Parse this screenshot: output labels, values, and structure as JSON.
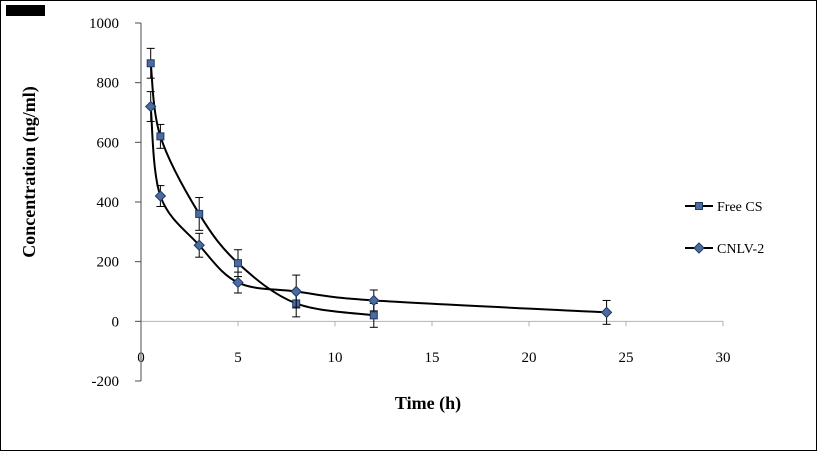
{
  "figure": {
    "background": "#ffffff",
    "border_color": "#000000"
  },
  "chart_data": {
    "type": "line",
    "title": "",
    "xlabel": "Time (h)",
    "ylabel": "Concentration (ng/ml)",
    "xlim": [
      0,
      30
    ],
    "ylim": [
      -200,
      1000
    ],
    "xticks": [
      0,
      5,
      10,
      15,
      20,
      25,
      30
    ],
    "yticks": [
      -200,
      0,
      200,
      400,
      600,
      800,
      1000
    ],
    "grid": false,
    "legend_position": "right",
    "axis_color": "#4d4d4d",
    "zero_line_color": "#b3b3b3",
    "error_bar_color": "#000000",
    "series": [
      {
        "name": "Free CS",
        "marker": "square",
        "line_color": "#000000",
        "marker_fill": "#4b6c9e",
        "marker_stroke": "#1f3864",
        "x": [
          0.5,
          1,
          3,
          5,
          8,
          12
        ],
        "y": [
          865,
          620,
          360,
          195,
          60,
          20
        ],
        "yerr": [
          50,
          40,
          55,
          45,
          45,
          40
        ]
      },
      {
        "name": "CNLV-2",
        "marker": "diamond",
        "line_color": "#000000",
        "marker_fill": "#4b6c9e",
        "marker_stroke": "#1f3864",
        "x": [
          0.5,
          1,
          3,
          5,
          8,
          12,
          24
        ],
        "y": [
          720,
          420,
          255,
          130,
          100,
          70,
          30
        ],
        "yerr": [
          50,
          35,
          40,
          35,
          55,
          35,
          40
        ]
      }
    ]
  }
}
